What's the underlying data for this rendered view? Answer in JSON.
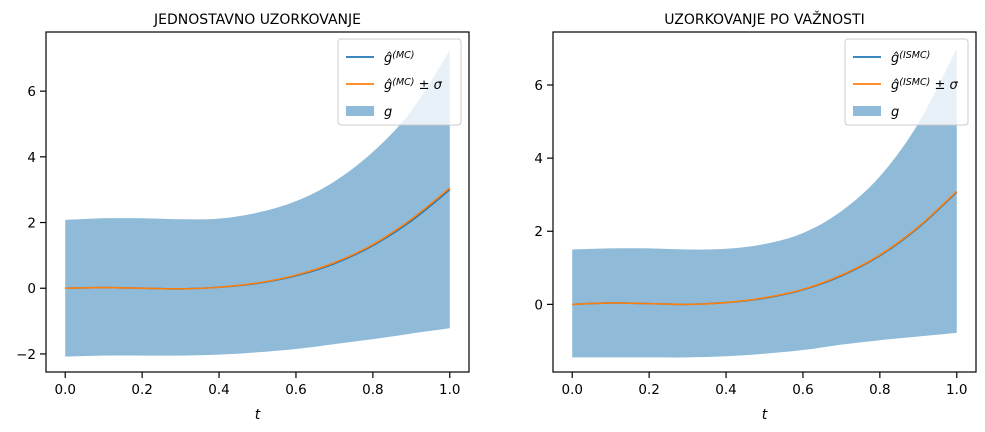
{
  "chart_data": [
    {
      "type": "area",
      "title": "JEDNOSTAVNO UZORKOVANJE",
      "xlabel": "t",
      "ylabel": "",
      "xlim": [
        -0.05,
        1.05
      ],
      "ylim": [
        -2.55,
        7.8
      ],
      "xticks": [
        0.0,
        0.2,
        0.4,
        0.6,
        0.8,
        1.0
      ],
      "xtick_labels": [
        "0.0",
        "0.2",
        "0.4",
        "0.6",
        "0.8",
        "1.0"
      ],
      "yticks": [
        -2,
        0,
        2,
        4,
        6
      ],
      "ytick_labels": [
        "−2",
        "0",
        "2",
        "4",
        "6"
      ],
      "grid": false,
      "legend_position": "top-right",
      "x": [
        0.0,
        0.1,
        0.2,
        0.3,
        0.4,
        0.5,
        0.6,
        0.7,
        0.8,
        0.9,
        1.0
      ],
      "series": [
        {
          "name": "ĝ(MC)",
          "legend": {
            "base": "ĝ",
            "sup": "(MC)",
            "suffix": ""
          },
          "kind": "line",
          "color": "#1f77b4",
          "values": [
            0.0,
            0.02,
            0.0,
            -0.02,
            0.03,
            0.15,
            0.38,
            0.75,
            1.3,
            2.05,
            3.0
          ]
        },
        {
          "name": "ĝ(MC) ± σ",
          "legend": {
            "base": "ĝ",
            "sup": "(MC)",
            "suffix": " ± σ"
          },
          "kind": "line",
          "color": "#ff7f0e",
          "values": [
            0.0,
            0.02,
            0.0,
            -0.02,
            0.03,
            0.16,
            0.4,
            0.78,
            1.33,
            2.1,
            3.05
          ]
        },
        {
          "name": "g",
          "legend": {
            "base": "g",
            "sup": "",
            "suffix": ""
          },
          "kind": "band",
          "color": "#1f77b4",
          "opacity": 0.5,
          "upper": [
            2.08,
            2.13,
            2.13,
            2.1,
            2.12,
            2.3,
            2.65,
            3.25,
            4.15,
            5.4,
            7.25
          ],
          "lower": [
            -2.08,
            -2.05,
            -2.05,
            -2.05,
            -2.02,
            -1.95,
            -1.85,
            -1.7,
            -1.55,
            -1.38,
            -1.22
          ]
        }
      ]
    },
    {
      "type": "area",
      "title": "UZORKOVANJE PO VAŽNOSTI",
      "xlabel": "t",
      "ylabel": "",
      "xlim": [
        -0.05,
        1.05
      ],
      "ylim": [
        -1.85,
        7.45
      ],
      "xticks": [
        0.0,
        0.2,
        0.4,
        0.6,
        0.8,
        1.0
      ],
      "xtick_labels": [
        "0.0",
        "0.2",
        "0.4",
        "0.6",
        "0.8",
        "1.0"
      ],
      "yticks": [
        0,
        2,
        4,
        6
      ],
      "ytick_labels": [
        "0",
        "2",
        "4",
        "6"
      ],
      "grid": false,
      "legend_position": "top-right",
      "x": [
        0.0,
        0.1,
        0.2,
        0.3,
        0.4,
        0.5,
        0.6,
        0.7,
        0.8,
        0.9,
        1.0
      ],
      "series": [
        {
          "name": "ĝ(ISMC)",
          "legend": {
            "base": "ĝ",
            "sup": "(ISMC)",
            "suffix": ""
          },
          "kind": "line",
          "color": "#1f77b4",
          "values": [
            0.0,
            0.04,
            0.02,
            0.0,
            0.05,
            0.17,
            0.4,
            0.78,
            1.33,
            2.1,
            3.07
          ]
        },
        {
          "name": "ĝ(ISMC) ± σ",
          "legend": {
            "base": "ĝ",
            "sup": "(ISMC)",
            "suffix": " ± σ"
          },
          "kind": "line",
          "color": "#ff7f0e",
          "values": [
            0.0,
            0.04,
            0.02,
            0.0,
            0.05,
            0.18,
            0.41,
            0.8,
            1.35,
            2.12,
            3.09
          ]
        },
        {
          "name": "g",
          "legend": {
            "base": "g",
            "sup": "",
            "suffix": ""
          },
          "kind": "band",
          "color": "#1f77b4",
          "opacity": 0.5,
          "upper": [
            1.5,
            1.53,
            1.53,
            1.5,
            1.52,
            1.65,
            1.95,
            2.55,
            3.5,
            4.95,
            7.0
          ],
          "lower": [
            -1.45,
            -1.45,
            -1.45,
            -1.45,
            -1.42,
            -1.35,
            -1.25,
            -1.1,
            -0.98,
            -0.88,
            -0.78
          ]
        }
      ]
    }
  ]
}
